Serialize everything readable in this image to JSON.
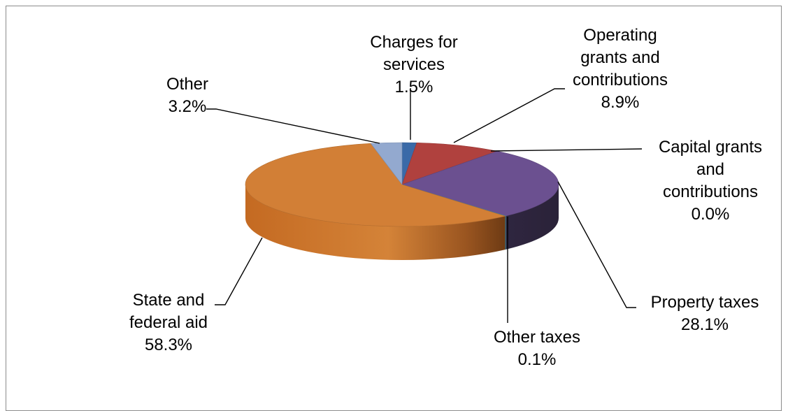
{
  "chart_data": {
    "type": "pie",
    "style": "3d",
    "colors": {
      "charges": "#3a6aa8",
      "operating": "#b0413e",
      "capital": "#7fb04d",
      "property": "#6b5090",
      "other_taxes": "#3da1bf",
      "state": "#d27f36",
      "other": "#93a9cf"
    },
    "slices": [
      {
        "key": "charges",
        "label_lines": [
          "Charges for",
          "services"
        ],
        "value_text": "1.5%",
        "value": 1.5
      },
      {
        "key": "operating",
        "label_lines": [
          "Operating",
          "grants and",
          "contributions"
        ],
        "value_text": "8.9%",
        "value": 8.9
      },
      {
        "key": "capital",
        "label_lines": [
          "Capital grants",
          "and",
          "contributions"
        ],
        "value_text": "0.0%",
        "value": 0.0
      },
      {
        "key": "property",
        "label_lines": [
          "Property taxes"
        ],
        "value_text": "28.1%",
        "value": 28.1
      },
      {
        "key": "other_taxes",
        "label_lines": [
          "Other taxes"
        ],
        "value_text": "0.1%",
        "value": 0.1
      },
      {
        "key": "state",
        "label_lines": [
          "State and",
          "federal aid"
        ],
        "value_text": "58.3%",
        "value": 58.3
      },
      {
        "key": "other",
        "label_lines": [
          "Other"
        ],
        "value_text": "3.2%",
        "value": 3.2
      }
    ]
  }
}
